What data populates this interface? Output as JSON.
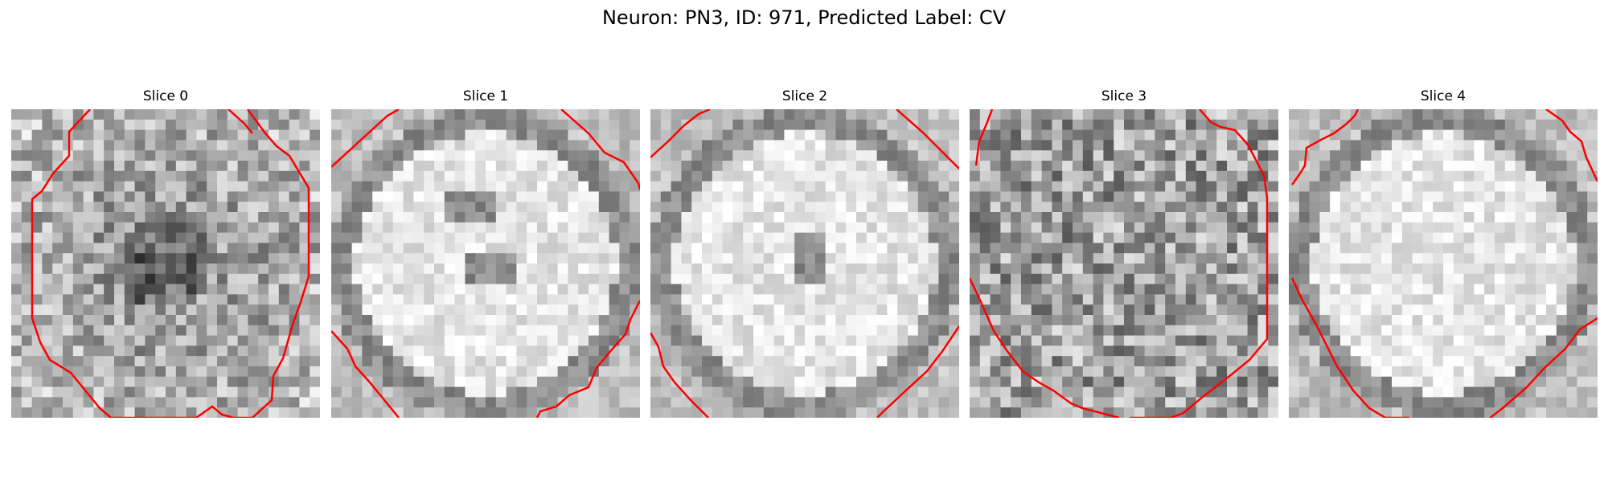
{
  "figure": {
    "title": "Neuron: PN3, ID: 971, Predicted Label: CV"
  },
  "panels": [
    {
      "title": "Slice 0",
      "seed": 11,
      "dark_center": true
    },
    {
      "title": "Slice 1",
      "seed": 23,
      "dark_center": false
    },
    {
      "title": "Slice 2",
      "seed": 37,
      "dark_center": false
    },
    {
      "title": "Slice 3",
      "seed": 51,
      "dark_center": false
    },
    {
      "title": "Slice 4",
      "seed": 67,
      "dark_center": false
    }
  ],
  "colors": {
    "contour": "#ff0000",
    "background": "#ffffff"
  }
}
